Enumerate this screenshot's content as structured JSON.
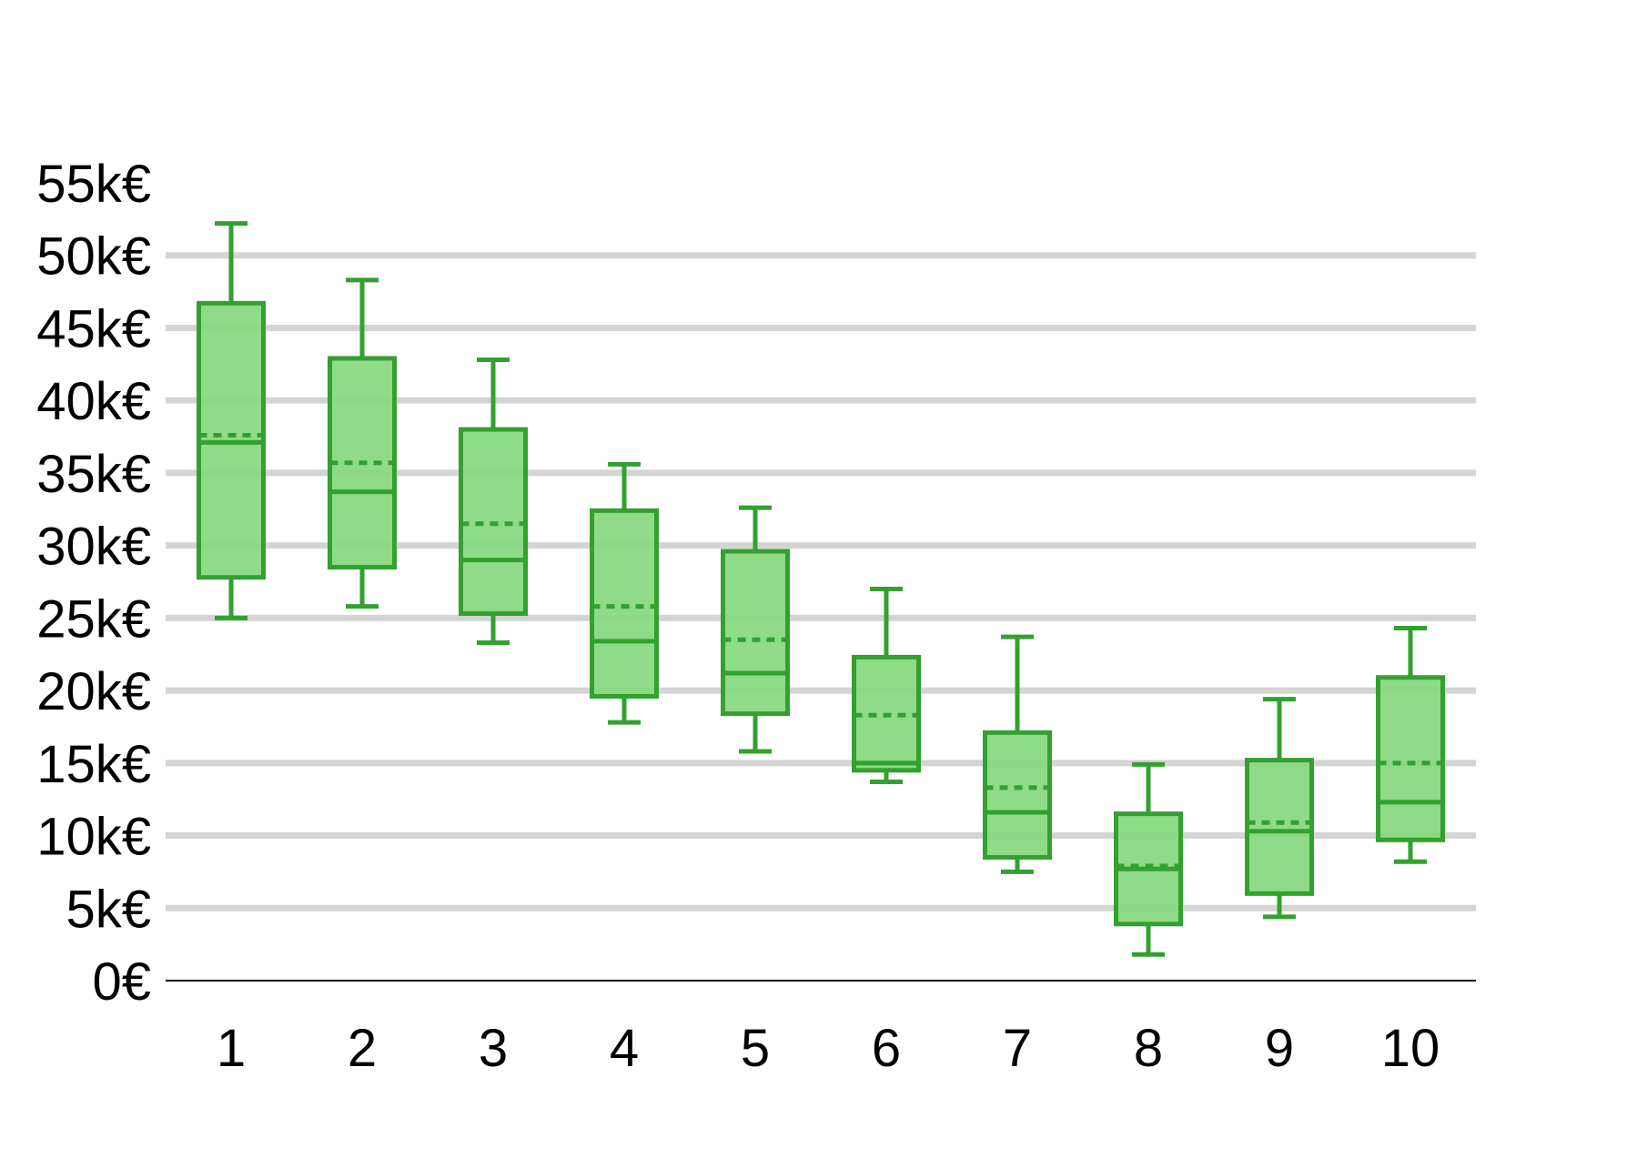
{
  "chart_data": {
    "type": "boxplot",
    "title": "",
    "xlabel": "",
    "ylabel": "",
    "categories": [
      "1",
      "2",
      "3",
      "4",
      "5",
      "6",
      "7",
      "8",
      "9",
      "10"
    ],
    "y_ticks": [
      "0€",
      "5k€",
      "10k€",
      "15k€",
      "20k€",
      "25k€",
      "30k€",
      "35k€",
      "40k€",
      "45k€",
      "50k€",
      "55k€"
    ],
    "y_tick_values": [
      0,
      5000,
      10000,
      15000,
      20000,
      25000,
      30000,
      35000,
      40000,
      45000,
      50000,
      55000
    ],
    "ylim": [
      0,
      55000
    ],
    "grid": true,
    "legend": "none",
    "series": [
      {
        "boxes": [
          {
            "whisker_low": 25000,
            "q1": 27800,
            "median": 37100,
            "mean": 37600,
            "q3": 46700,
            "whisker_high": 52200
          },
          {
            "whisker_low": 25800,
            "q1": 28500,
            "median": 33700,
            "mean": 35700,
            "q3": 42900,
            "whisker_high": 48300
          },
          {
            "whisker_low": 23300,
            "q1": 25300,
            "median": 29000,
            "mean": 31500,
            "q3": 38000,
            "whisker_high": 42800
          },
          {
            "whisker_low": 17800,
            "q1": 19600,
            "median": 23400,
            "mean": 25800,
            "q3": 32400,
            "whisker_high": 35600
          },
          {
            "whisker_low": 15800,
            "q1": 18400,
            "median": 21200,
            "mean": 23500,
            "q3": 29600,
            "whisker_high": 32600
          },
          {
            "whisker_low": 13700,
            "q1": 14500,
            "median": 15000,
            "mean": 18300,
            "q3": 22300,
            "whisker_high": 27000
          },
          {
            "whisker_low": 7500,
            "q1": 8500,
            "median": 11600,
            "mean": 13300,
            "q3": 17100,
            "whisker_high": 23700
          },
          {
            "whisker_low": 1800,
            "q1": 3900,
            "median": 7700,
            "mean": 7900,
            "q3": 11500,
            "whisker_high": 14900
          },
          {
            "whisker_low": 4400,
            "q1": 6000,
            "median": 10300,
            "mean": 10900,
            "q3": 15200,
            "whisker_high": 19400
          },
          {
            "whisker_low": 8200,
            "q1": 9700,
            "median": 12300,
            "mean": 15000,
            "q3": 20900,
            "whisker_high": 24300
          }
        ]
      }
    ],
    "colors": {
      "box_fill": "#85d87e",
      "box_stroke": "#32a12f",
      "grid": "#d4d4d4",
      "axis": "#000000",
      "text": "#000000"
    }
  }
}
